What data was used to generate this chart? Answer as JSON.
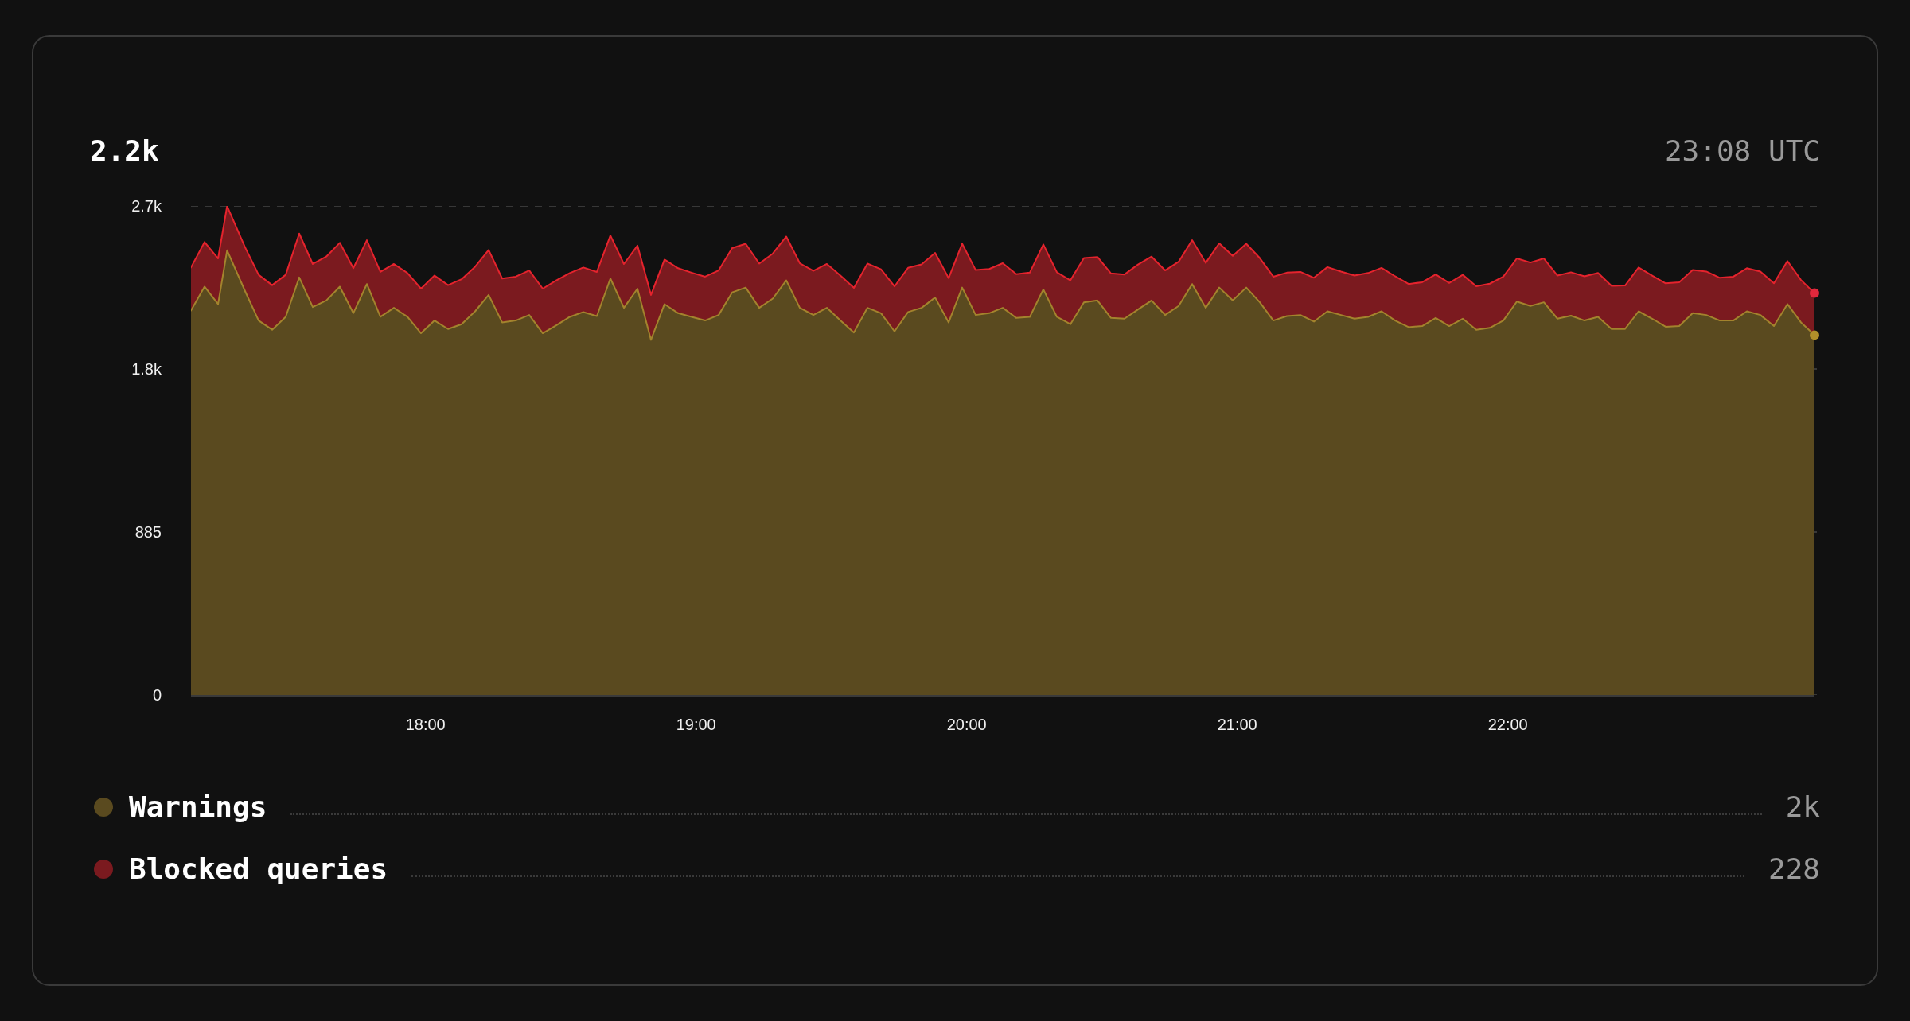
{
  "chart_data": {
    "type": "area",
    "title": "2.2k",
    "annotations": [
      "23:08 UTC",
      "2k",
      "228"
    ],
    "x": [
      17.1333,
      17.1833,
      17.2333,
      17.2667,
      17.3333,
      17.3833,
      17.4333,
      17.4833,
      17.5333,
      17.5833,
      17.6333,
      17.6833,
      17.7333,
      17.7833,
      17.8333,
      17.8833,
      17.9333,
      17.9833,
      18.0333,
      18.0833,
      18.1333,
      18.1833,
      18.2333,
      18.2833,
      18.3333,
      18.3833,
      18.4333,
      18.4833,
      18.5333,
      18.5833,
      18.6333,
      18.6833,
      18.7333,
      18.7833,
      18.8333,
      18.8833,
      18.9333,
      18.9833,
      19.0333,
      19.0833,
      19.1333,
      19.1833,
      19.2333,
      19.2833,
      19.3333,
      19.3833,
      19.4333,
      19.4833,
      19.5333,
      19.5833,
      19.6333,
      19.6833,
      19.7333,
      19.7833,
      19.8333,
      19.8833,
      19.9333,
      19.9833,
      20.0333,
      20.0833,
      20.1333,
      20.1833,
      20.2333,
      20.2833,
      20.3333,
      20.3833,
      20.4333,
      20.4833,
      20.5333,
      20.5833,
      20.6333,
      20.6833,
      20.7333,
      20.7833,
      20.8333,
      20.8833,
      20.9333,
      20.9833,
      21.0333,
      21.0833,
      21.1333,
      21.1833,
      21.2333,
      21.2833,
      21.3333,
      21.3833,
      21.4333,
      21.4833,
      21.5333,
      21.5833,
      21.6333,
      21.6833,
      21.7333,
      21.7833,
      21.8333,
      21.8833,
      21.9333,
      21.9833,
      22.0333,
      22.0833,
      22.1333,
      22.1833,
      22.2333,
      22.2833,
      22.3333,
      22.3833,
      22.4333,
      22.4833,
      22.5333,
      22.5833,
      22.6333,
      22.6833,
      22.7333,
      22.7833,
      22.8333,
      22.8833,
      22.9333,
      22.9833,
      23.0333,
      23.0833,
      23.1333
    ],
    "xlim": [
      17.1333,
      23.1333
    ],
    "xticks": [
      {
        "value": 18,
        "label": "18:00"
      },
      {
        "value": 19,
        "label": "19:00"
      },
      {
        "value": 20,
        "label": "20:00"
      },
      {
        "value": 21,
        "label": "21:00"
      },
      {
        "value": 22,
        "label": "22:00"
      }
    ],
    "ylim": [
      0,
      2655
    ],
    "yticks": [
      0,
      885,
      {
        "value": 1770,
        "label": "1.8k"
      },
      {
        "value": 2655,
        "label": "2.7k"
      }
    ],
    "stacked": true,
    "grid": "y",
    "legend": "bottom",
    "series": [
      {
        "name": "Warnings",
        "color": "#5a4a1f",
        "values": [
          2087,
          2217,
          2122,
          2414,
          2192,
          2033,
          1983,
          2053,
          2267,
          2106,
          2142,
          2217,
          2073,
          2231,
          2053,
          2102,
          2053,
          1964,
          2033,
          1987,
          2013,
          2083,
          2172,
          2023,
          2033,
          2063,
          1964,
          2007,
          2053,
          2079,
          2057,
          2261,
          2102,
          2206,
          1928,
          2122,
          2073,
          2053,
          2033,
          2063,
          2186,
          2212,
          2102,
          2152,
          2251,
          2102,
          2063,
          2102,
          2033,
          1968,
          2102,
          2073,
          1974,
          2079,
          2102,
          2158,
          2023,
          2212,
          2063,
          2073,
          2102,
          2047,
          2053,
          2202,
          2053,
          2013,
          2132,
          2142,
          2047,
          2043,
          2093,
          2142,
          2063,
          2112,
          2231,
          2102,
          2212,
          2142,
          2212,
          2132,
          2033,
          2057,
          2063,
          2027,
          2083,
          2063,
          2043,
          2053,
          2083,
          2033,
          1997,
          2003,
          2047,
          2003,
          2043,
          1983,
          1993,
          2033,
          2136,
          2112,
          2132,
          2043,
          2059,
          2033,
          2053,
          1987,
          1987,
          2083,
          2043,
          1999,
          2003,
          2073,
          2063,
          2033,
          2033,
          2083,
          2063,
          2003,
          2122,
          2023,
          1954
        ]
      },
      {
        "name": "Blocked queries",
        "color": "#7b1a1f",
        "values": [
          234,
          242,
          248,
          240,
          238,
          248,
          242,
          228,
          238,
          234,
          238,
          238,
          244,
          238,
          244,
          238,
          238,
          242,
          244,
          238,
          244,
          242,
          244,
          238,
          238,
          242,
          242,
          244,
          238,
          242,
          240,
          234,
          238,
          234,
          244,
          242,
          244,
          240,
          238,
          242,
          240,
          238,
          240,
          244,
          238,
          242,
          240,
          238,
          244,
          242,
          240,
          238,
          244,
          240,
          236,
          242,
          240,
          238,
          244,
          240,
          242,
          238,
          240,
          244,
          242,
          238,
          240,
          236,
          242,
          240,
          244,
          238,
          242,
          240,
          238,
          244,
          240,
          242,
          238,
          240,
          238,
          236,
          234,
          238,
          240,
          236,
          234,
          238,
          236,
          240,
          234,
          238,
          236,
          234,
          238,
          236,
          240,
          238,
          234,
          236,
          238,
          234,
          236,
          240,
          238,
          234,
          236,
          238,
          234,
          236,
          238,
          234,
          236,
          232,
          238,
          234,
          236,
          232,
          234,
          230,
          228
        ]
      },
      {
        "type": "scatter",
        "x": [
          23.1333
        ],
        "values": [
          1954
        ],
        "color": "#b08f2a",
        "marker": "circle"
      },
      {
        "type": "scatter",
        "x": [
          23.1333
        ],
        "values": [
          2182
        ],
        "color": "#e0283c",
        "marker": "circle"
      }
    ]
  }
}
